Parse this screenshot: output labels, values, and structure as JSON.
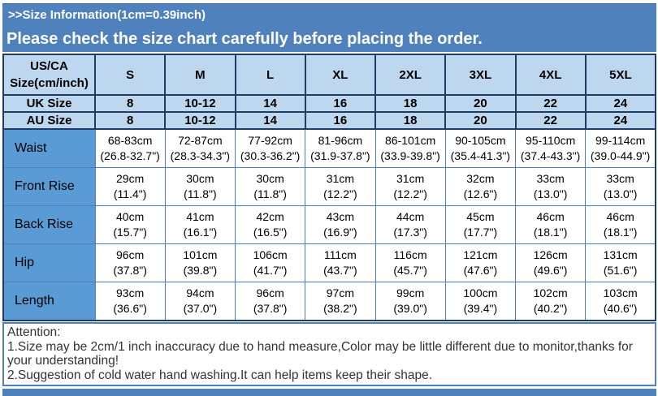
{
  "header": {
    "section_title": ">>Size Information(1cm=0.39inch)",
    "warning": "Please check the size chart carefully before placing the order."
  },
  "table": {
    "corner": {
      "line1": "US/CA",
      "line2": "Size(cm/inch)"
    },
    "sizes": [
      "S",
      "M",
      "L",
      "XL",
      "2XL",
      "3XL",
      "4XL",
      "5XL"
    ],
    "uk": {
      "label": "UK Size",
      "values": [
        "8",
        "10-12",
        "14",
        "16",
        "18",
        "20",
        "22",
        "24"
      ]
    },
    "au": {
      "label": "AU Size",
      "values": [
        "8",
        "10-12",
        "14",
        "16",
        "18",
        "20",
        "22",
        "24"
      ]
    },
    "measurements": [
      {
        "label": "Waist",
        "cm": [
          "68-83cm",
          "72-87cm",
          "77-92cm",
          "81-96cm",
          "86-101cm",
          "90-105cm",
          "95-110cm",
          "99-114cm"
        ],
        "inch": [
          "(26.8-32.7\")",
          "(28.3-34.3\")",
          "(30.3-36.2\")",
          "(31.9-37.8\")",
          "(33.9-39.8\")",
          "(35.4-41.3\")",
          "(37.4-43.3\")",
          "(39.0-44.9\")"
        ]
      },
      {
        "label": "Front Rise",
        "cm": [
          "29cm",
          "30cm",
          "30cm",
          "31cm",
          "31cm",
          "32cm",
          "33cm",
          "33cm"
        ],
        "inch": [
          "(11.4\")",
          "(11.8\")",
          "(11.8\")",
          "(12.2\")",
          "(12.2\")",
          "(12.6\")",
          "(13.0\")",
          "(13.0\")"
        ]
      },
      {
        "label": "Back Rise",
        "cm": [
          "40cm",
          "41cm",
          "42cm",
          "43cm",
          "44cm",
          "45cm",
          "46cm",
          "46cm"
        ],
        "inch": [
          "(15.7\")",
          "(16.1\")",
          "(16.5\")",
          "(16.9\")",
          "(17.3\")",
          "(17.7\")",
          "(18.1\")",
          "(18.1\")"
        ]
      },
      {
        "label": "Hip",
        "cm": [
          "96cm",
          "101cm",
          "106cm",
          "111cm",
          "116cm",
          "121cm",
          "126cm",
          "131cm"
        ],
        "inch": [
          "(37.8\")",
          "(39.8\")",
          "(41.7\")",
          "(43.7\")",
          "(45.7\")",
          "(47.6\")",
          "(49.6\")",
          "(51.6\")"
        ]
      },
      {
        "label": "Length",
        "cm": [
          "93cm",
          "94cm",
          "96cm",
          "97cm",
          "99cm",
          "100cm",
          "102cm",
          "103cm"
        ],
        "inch": [
          "(36.6\")",
          "(37.0\")",
          "(37.8\")",
          "(38.2\")",
          "(39.0\")",
          "(39.4\")",
          "(40.2\")",
          "(40.6\")"
        ]
      }
    ]
  },
  "attention": {
    "title": "Attention:",
    "line1": "1.Size may be 2cm/1 inch inaccuracy due to hand measure,Color may be little different due to monitor,thanks for your understanding!",
    "line2": "2.Suggestion of cold water hand washing.It can help items keep their shape."
  },
  "colors": {
    "bar_blue": "#4F81BD",
    "header_cell_blue": "#BDD7EE",
    "label_cell_blue": "#5B9BD5",
    "border_dark": "#1F3C64",
    "border_light": "#4E7FB8"
  }
}
